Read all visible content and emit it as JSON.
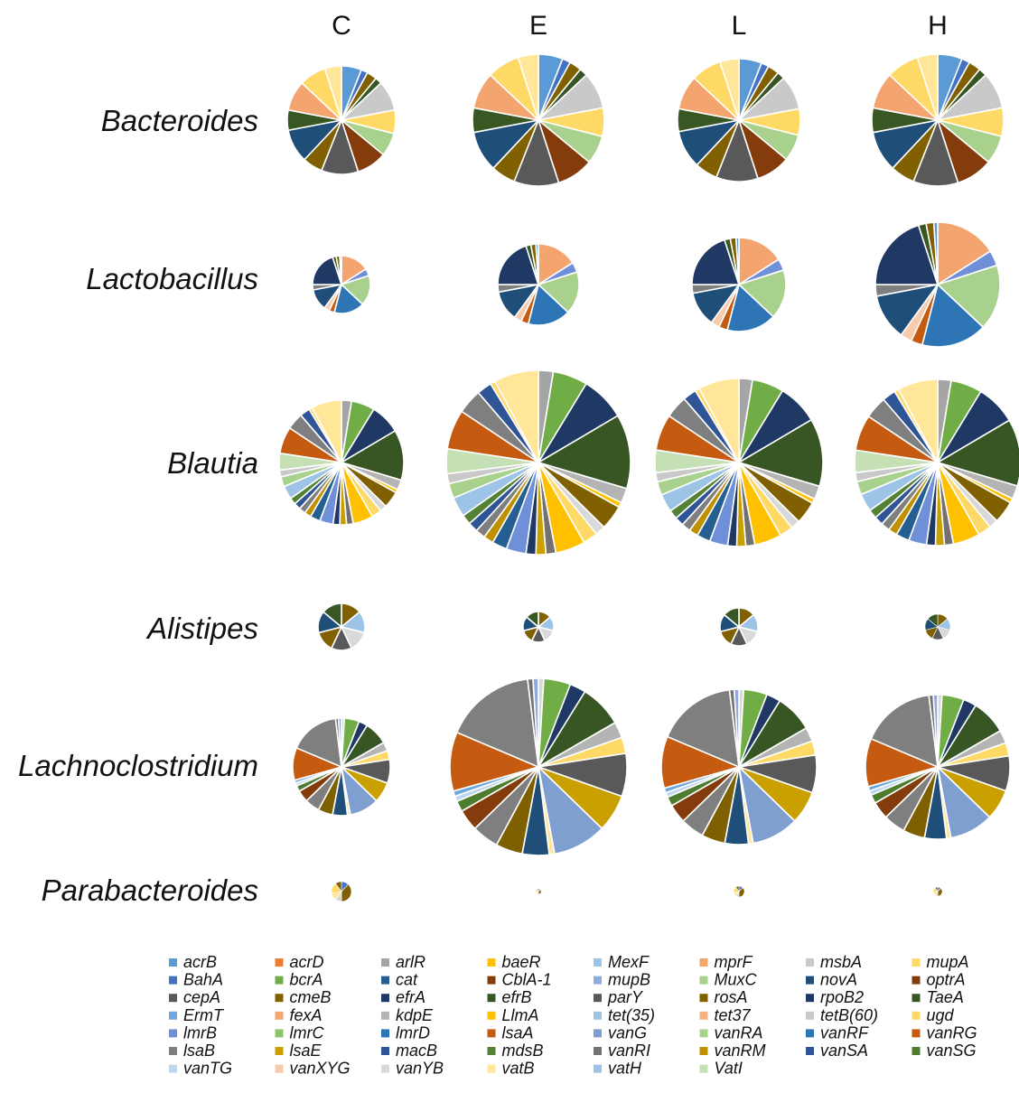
{
  "chart_data": {
    "type": "pie",
    "columns": [
      "C",
      "E",
      "L",
      "H"
    ],
    "rows": [
      "Bacteroides",
      "Lactobacillus",
      "Blautia",
      "Alistipes",
      "Lachnoclostridium",
      "Parabacteroides"
    ],
    "relative_pie_size": [
      [
        60,
        73,
        68,
        73
      ],
      [
        32,
        45,
        52,
        69
      ],
      [
        69,
        102,
        93,
        92
      ],
      [
        26,
        17,
        21,
        14
      ],
      [
        54,
        98,
        86,
        80
      ],
      [
        11,
        3,
        6,
        5
      ]
    ],
    "genes": [
      "acrB",
      "acrD",
      "arlR",
      "baeR",
      "MexF",
      "mprF",
      "msbA",
      "mupA",
      "BahA",
      "bcrA",
      "cat",
      "CblA-1",
      "mupB",
      "MuxC",
      "novA",
      "optrA",
      "cepA",
      "cmeB",
      "efrA",
      "efrB",
      "parY",
      "rosA",
      "rpoB2",
      "TaeA",
      "ErmT",
      "fexA",
      "kdpE",
      "LlmA",
      "tet(35)",
      "tet37",
      "tetB(60)",
      "ugd",
      "lmrB",
      "lmrC",
      "lmrD",
      "lsaA",
      "vanG",
      "vanRA",
      "vanRF",
      "vanRG",
      "lsaB",
      "lsaE",
      "macB",
      "mdsB",
      "vanRI",
      "vanRM",
      "vanSA",
      "vanSG",
      "vanTG",
      "vanXYG",
      "vanYB",
      "vatB",
      "vatH",
      "VatI"
    ],
    "gene_colors": {
      "acrB": "#5b9bd5",
      "acrD": "#ed7d31",
      "arlR": "#a5a5a5",
      "baeR": "#ffc000",
      "MexF": "#9dc3e6",
      "mprF": "#f4a46e",
      "msbA": "#c9c9c9",
      "mupA": "#ffd966",
      "BahA": "#4472c4",
      "bcrA": "#70ad47",
      "cat": "#255e91",
      "CblA-1": "#843c0c",
      "mupB": "#8faadc",
      "MuxC": "#a9d18e",
      "novA": "#1f4e79",
      "optrA": "#843c0c",
      "cepA": "#595959",
      "cmeB": "#806000",
      "efrA": "#203864",
      "efrB": "#375623",
      "parY": "#595959",
      "rosA": "#7f6000",
      "rpoB2": "#1f3864",
      "TaeA": "#385723",
      "ErmT": "#6fa8dc",
      "fexA": "#f4a46e",
      "kdpE": "#b4b4b4",
      "LlmA": "#ffc000",
      "tet(35)": "#9dc3e6",
      "tet37": "#f4b183",
      "tetB(60)": "#c9c9c9",
      "ugd": "#ffd966",
      "lmrB": "#6f8fd8",
      "lmrC": "#8cc56a",
      "lmrD": "#2e75b6",
      "lsaA": "#c55a11",
      "vanG": "#7f9fd0",
      "vanRA": "#a9d18e",
      "vanRF": "#2e75b6",
      "vanRG": "#c55a11",
      "lsaB": "#7f7f7f",
      "lsaE": "#c9a000",
      "macB": "#2f5597",
      "mdsB": "#548235",
      "vanRI": "#767171",
      "vanRM": "#bf9000",
      "vanSA": "#2f5597",
      "vanSG": "#4e7c2f",
      "vanTG": "#bdd7ee",
      "vanXYG": "#f8cbad",
      "vanYB": "#d9d9d9",
      "vatB": "#ffe699",
      "vatH": "#9dc3e6",
      "VatI": "#c5e0b4"
    },
    "slices": {
      "Bacteroides": {
        "genes": [
          "acrB",
          "BahA",
          "cmeB",
          "efrB",
          "msbA",
          "ugd",
          "MuxC",
          "optrA",
          "cepA",
          "cmeB",
          "novA",
          "TaeA",
          "fexA",
          "mupA",
          "vatB"
        ],
        "values": [
          6,
          2,
          3,
          2,
          9,
          7,
          7,
          9,
          11,
          6,
          10,
          6,
          9,
          8,
          5
        ]
      },
      "Lactobacillus": {
        "genes": [
          "mprF",
          "lmrB",
          "MuxC",
          "lmrD",
          "lsaA",
          "vanXYG",
          "novA",
          "lsaB",
          "rpoB2",
          "TaeA",
          "cmeB",
          "acrB"
        ],
        "values": [
          16,
          4,
          17,
          17,
          3,
          3,
          12,
          3,
          20,
          2,
          2,
          1
        ]
      },
      "Blautia": {
        "genes": [
          "arlR",
          "bcrA",
          "efrA",
          "efrB",
          "kdpE",
          "baeR",
          "cmeB",
          "vanYB",
          "ugd",
          "LlmA",
          "vanRI",
          "lsaE",
          "efrA",
          "lmrB",
          "cat",
          "vanRM",
          "lsaB",
          "vanSA",
          "mdsB",
          "tet(35)",
          "vanRA",
          "tetB(60)",
          "VatI",
          "vanRG",
          "lsaB",
          "vanSA",
          "mupA",
          "vatB"
        ],
        "values": [
          3,
          7,
          9,
          15,
          3,
          1,
          5,
          2,
          3,
          6,
          2,
          2,
          2,
          4,
          3,
          2,
          2,
          2,
          2,
          4,
          3,
          2,
          5,
          8,
          5,
          3,
          1,
          9
        ]
      },
      "Alistipes": {
        "genes": [
          "cmeB",
          "tet(35)",
          "vanYB",
          "cepA",
          "cmeB",
          "novA",
          "TaeA"
        ],
        "values": [
          14,
          15,
          14,
          14,
          14,
          15,
          14
        ]
      },
      "Lachnoclostridium": {
        "genes": [
          "vanYB",
          "bcrA",
          "efrA",
          "efrB",
          "kdpE",
          "ugd",
          "parY",
          "lsaE",
          "vanG",
          "vatB",
          "novA",
          "rosA",
          "lsaB",
          "CblA-1",
          "vanSG",
          "vanTG",
          "ErmT",
          "vanRG",
          "lsaB",
          "vanRI",
          "mupB"
        ],
        "values": [
          1,
          5,
          3,
          8,
          3,
          3,
          8,
          7,
          10,
          1,
          5,
          5,
          5,
          4,
          2,
          1,
          1,
          11,
          17,
          1,
          1
        ]
      },
      "Parabacteroides": {
        "genes": [
          "BahA",
          "cmeB",
          "vanYB",
          "vatB",
          "mupA",
          "cmeB"
        ],
        "values": [
          12,
          38,
          10,
          12,
          18,
          10
        ]
      }
    },
    "legend_position": "bottom"
  }
}
